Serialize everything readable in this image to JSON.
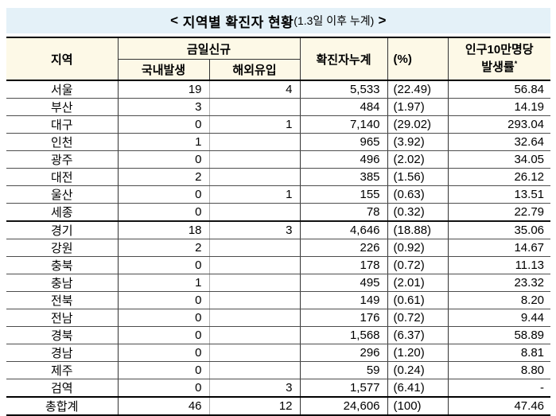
{
  "title": {
    "prefix": "< ",
    "main": "지역별 확진자 현황",
    "note": "(1.3일 이후 누계)",
    "suffix": " >"
  },
  "colors": {
    "title_bar_bg": "#e4f1f8",
    "header_bg": "#fdf9e7",
    "heavy_rule": "#000000",
    "row_rule": "#4d4d4d",
    "light_divider": "#b3b3b3"
  },
  "table": {
    "headers": {
      "region": "지역",
      "today_new": "금일신규",
      "domestic": "국내발생",
      "imported": "해외유입",
      "cumulative": "확진자누계",
      "percent": "(%)",
      "rate_line1": "인구10만명당",
      "rate_line2": "발생률",
      "rate_sup": "*"
    },
    "rows": [
      {
        "region": "서울",
        "domestic": "19",
        "imported": "4",
        "cumulative": "5,533",
        "percent": "(22.49)",
        "rate": "56.84"
      },
      {
        "region": "부산",
        "domestic": "3",
        "imported": "",
        "cumulative": "484",
        "percent": "(1.97)",
        "rate": "14.19"
      },
      {
        "region": "대구",
        "domestic": "0",
        "imported": "1",
        "cumulative": "7,140",
        "percent": "(29.02)",
        "rate": "293.04"
      },
      {
        "region": "인천",
        "domestic": "1",
        "imported": "",
        "cumulative": "965",
        "percent": "(3.92)",
        "rate": "32.64"
      },
      {
        "region": "광주",
        "domestic": "0",
        "imported": "",
        "cumulative": "496",
        "percent": "(2.02)",
        "rate": "34.05"
      },
      {
        "region": "대전",
        "domestic": "2",
        "imported": "",
        "cumulative": "385",
        "percent": "(1.56)",
        "rate": "26.12"
      },
      {
        "region": "울산",
        "domestic": "0",
        "imported": "1",
        "cumulative": "155",
        "percent": "(0.63)",
        "rate": "13.51"
      },
      {
        "region": "세종",
        "domestic": "0",
        "imported": "",
        "cumulative": "78",
        "percent": "(0.32)",
        "rate": "22.79"
      },
      {
        "region": "경기",
        "domestic": "18",
        "imported": "3",
        "cumulative": "4,646",
        "percent": "(18.88)",
        "rate": "35.06",
        "group_start": true
      },
      {
        "region": "강원",
        "domestic": "2",
        "imported": "",
        "cumulative": "226",
        "percent": "(0.92)",
        "rate": "14.67"
      },
      {
        "region": "충북",
        "domestic": "0",
        "imported": "",
        "cumulative": "178",
        "percent": "(0.72)",
        "rate": "11.13"
      },
      {
        "region": "충남",
        "domestic": "1",
        "imported": "",
        "cumulative": "495",
        "percent": "(2.01)",
        "rate": "23.32"
      },
      {
        "region": "전북",
        "domestic": "0",
        "imported": "",
        "cumulative": "149",
        "percent": "(0.61)",
        "rate": "8.20"
      },
      {
        "region": "전남",
        "domestic": "0",
        "imported": "",
        "cumulative": "176",
        "percent": "(0.72)",
        "rate": "9.44"
      },
      {
        "region": "경북",
        "domestic": "0",
        "imported": "",
        "cumulative": "1,568",
        "percent": "(6.37)",
        "rate": "58.89"
      },
      {
        "region": "경남",
        "domestic": "0",
        "imported": "",
        "cumulative": "296",
        "percent": "(1.20)",
        "rate": "8.81"
      },
      {
        "region": "제주",
        "domestic": "0",
        "imported": "",
        "cumulative": "59",
        "percent": "(0.24)",
        "rate": "8.80"
      },
      {
        "region": "검역",
        "domestic": "0",
        "imported": "3",
        "cumulative": "1,577",
        "percent": "(6.41)",
        "rate": "-"
      }
    ],
    "total": {
      "region": "총합계",
      "domestic": "46",
      "imported": "12",
      "cumulative": "24,606",
      "percent": "(100)",
      "rate": "47.46"
    }
  }
}
